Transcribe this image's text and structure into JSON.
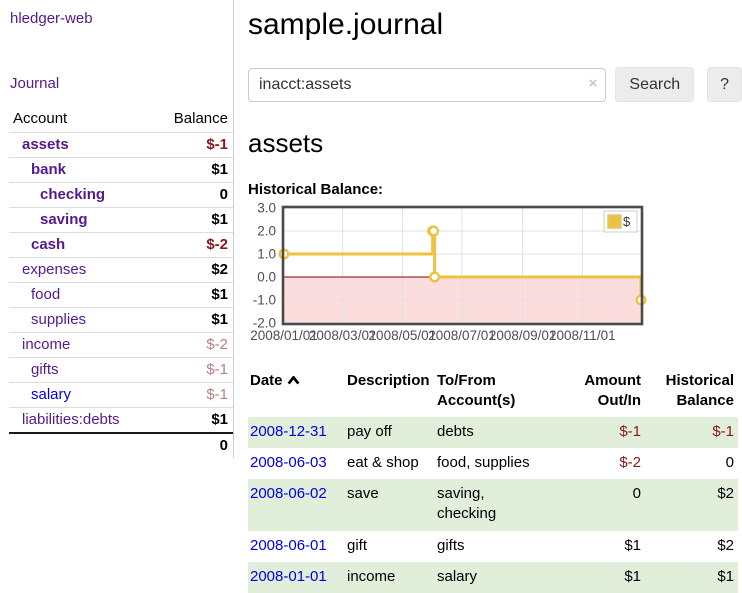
{
  "sidebar": {
    "brand": "hledger-web",
    "nav": {
      "journal": "Journal"
    },
    "table_header": {
      "account": "Account",
      "balance": "Balance"
    },
    "accounts": [
      {
        "name": "assets",
        "indent": 1,
        "bold": true,
        "balance": "$-1",
        "neg": "strong"
      },
      {
        "name": "bank",
        "indent": 2,
        "bold": true,
        "balance": "$1",
        "neg": "none"
      },
      {
        "name": "checking",
        "indent": 3,
        "bold": true,
        "balance": "0",
        "neg": "none"
      },
      {
        "name": "saving",
        "indent": 3,
        "bold": true,
        "balance": "$1",
        "neg": "none"
      },
      {
        "name": "cash",
        "indent": 2,
        "bold": true,
        "balance": "$-2",
        "neg": "strong"
      },
      {
        "name": "expenses",
        "indent": 1,
        "bold": false,
        "balance": "$2",
        "neg": "none"
      },
      {
        "name": "food",
        "indent": 2,
        "bold": false,
        "balance": "$1",
        "neg": "none"
      },
      {
        "name": "supplies",
        "indent": 2,
        "bold": false,
        "balance": "$1",
        "neg": "none"
      },
      {
        "name": "income",
        "indent": 1,
        "bold": false,
        "balance": "$-2",
        "neg": "soft"
      },
      {
        "name": "gifts",
        "indent": 2,
        "bold": false,
        "balance": "$-1",
        "neg": "soft"
      },
      {
        "name": "salary",
        "indent": 2,
        "bold": false,
        "balance": "$-1",
        "neg": "soft",
        "link_color": "blue"
      },
      {
        "name": "liabilities:debts",
        "indent": 1,
        "bold": false,
        "balance": "$1",
        "neg": "none"
      }
    ],
    "total": "0"
  },
  "header": {
    "title": "sample.journal"
  },
  "search": {
    "value": "inacct:assets",
    "clear_icon": "×",
    "button": "Search",
    "help_button": "?"
  },
  "account_page": {
    "heading": "assets",
    "chart_label": "Historical Balance:"
  },
  "chart_data": {
    "type": "line",
    "step": true,
    "title": "Historical Balance",
    "xlim": [
      "2008-01-01",
      "2008-12-31"
    ],
    "ylim": [
      -2,
      3
    ],
    "y_ticks": [
      3,
      2,
      1,
      0,
      -1,
      -2
    ],
    "x_ticks": [
      "2008/01/01",
      "2008/03/01",
      "2008/05/01",
      "2008/07/01",
      "2008/09/01",
      "2008/11/01"
    ],
    "series": [
      {
        "name": "$",
        "color": "#edc240",
        "points": [
          [
            "2008-01-01",
            1
          ],
          [
            "2008-06-01",
            2
          ],
          [
            "2008-06-02",
            2
          ],
          [
            "2008-06-03",
            0
          ],
          [
            "2008-12-31",
            -1
          ]
        ]
      }
    ],
    "legend_position": "top-right",
    "grid": true,
    "colors": {
      "grid_line": "#e0e0e0",
      "zero_line": "#800000",
      "negative_region": "#fbdddd",
      "plot_border": "#4a4a4a",
      "axis_text": "#4f4f4f",
      "legend_border": "#ccc",
      "legend_swatch_border": "#d9ca75"
    }
  },
  "register": {
    "columns": {
      "date": "Date",
      "description": "Description",
      "accounts": "To/From Account(s)",
      "amount": "Amount Out/In",
      "balance": "Historical Balance"
    },
    "sort": {
      "column": "date",
      "direction": "asc"
    },
    "rows": [
      {
        "date": "2008-12-31",
        "description": "pay off",
        "accounts": "debts",
        "amount": "$-1",
        "amount_neg": true,
        "balance": "$-1",
        "balance_neg": true,
        "shaded": true
      },
      {
        "date": "2008-06-03",
        "description": "eat & shop",
        "accounts": "food, supplies",
        "amount": "$-2",
        "amount_neg": true,
        "balance": "0",
        "balance_neg": false,
        "shaded": false
      },
      {
        "date": "2008-06-02",
        "description": "save",
        "accounts": "saving, checking",
        "amount": "0",
        "amount_neg": false,
        "balance": "$2",
        "balance_neg": false,
        "shaded": true
      },
      {
        "date": "2008-06-01",
        "description": "gift",
        "accounts": "gifts",
        "amount": "$1",
        "amount_neg": false,
        "balance": "$2",
        "balance_neg": false,
        "shaded": false
      },
      {
        "date": "2008-01-01",
        "description": "income",
        "accounts": "salary",
        "amount": "$1",
        "amount_neg": false,
        "balance": "$1",
        "balance_neg": false,
        "shaded": true
      }
    ]
  },
  "colors": {
    "link_purple": "#551a8b",
    "link_blue": "#0000e0",
    "negative_strong": "#8c1616",
    "negative_soft": "#bd7f7f",
    "row_shade_green": "#e0eeda",
    "series_gold": "#edc240"
  }
}
